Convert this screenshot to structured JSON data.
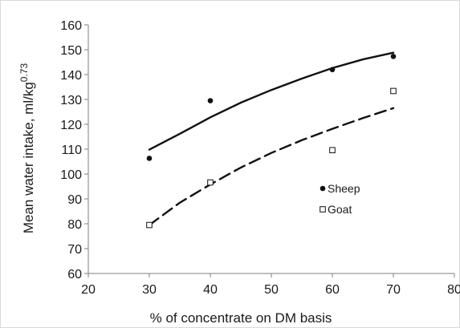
{
  "chart_data": {
    "type": "scatter",
    "title": "",
    "xlabel": "% of concentrate on DM basis",
    "ylabel_main": "Mean water intake, ml/kg",
    "ylabel_exp": "0.73",
    "xlim": [
      20,
      80
    ],
    "ylim": [
      60,
      160
    ],
    "x_ticks": [
      "20",
      "30",
      "40",
      "50",
      "60",
      "70",
      "80"
    ],
    "y_ticks": [
      "60",
      "70",
      "80",
      "90",
      "100",
      "110",
      "120",
      "130",
      "140",
      "150",
      "160"
    ],
    "grid": false,
    "legend_position": "inside-right",
    "series": [
      {
        "name": "Sheep",
        "marker": "filled-circle",
        "color": "#111111",
        "points": [
          [
            30,
            106.3
          ],
          [
            40,
            129.5
          ],
          [
            60,
            142
          ],
          [
            70,
            147.3
          ]
        ],
        "trend": [
          [
            30,
            109.8
          ],
          [
            35,
            116.2
          ],
          [
            40,
            122.8
          ],
          [
            45,
            128.7
          ],
          [
            50,
            133.8
          ],
          [
            55,
            138.4
          ],
          [
            60,
            142.6
          ],
          [
            65,
            146.1
          ],
          [
            70,
            148.8
          ]
        ]
      },
      {
        "name": "Goat",
        "marker": "open-square",
        "color": "#111111",
        "points": [
          [
            30,
            79.5
          ],
          [
            40,
            96.6
          ],
          [
            60,
            109.6
          ],
          [
            70,
            133.4
          ]
        ],
        "trend": [
          [
            30,
            79.5
          ],
          [
            35,
            88.5
          ],
          [
            40,
            95.8
          ],
          [
            45,
            102.6
          ],
          [
            50,
            108.5
          ],
          [
            55,
            113.6
          ],
          [
            60,
            118.2
          ],
          [
            65,
            122.5
          ],
          [
            70,
            126.5
          ]
        ]
      }
    ]
  }
}
